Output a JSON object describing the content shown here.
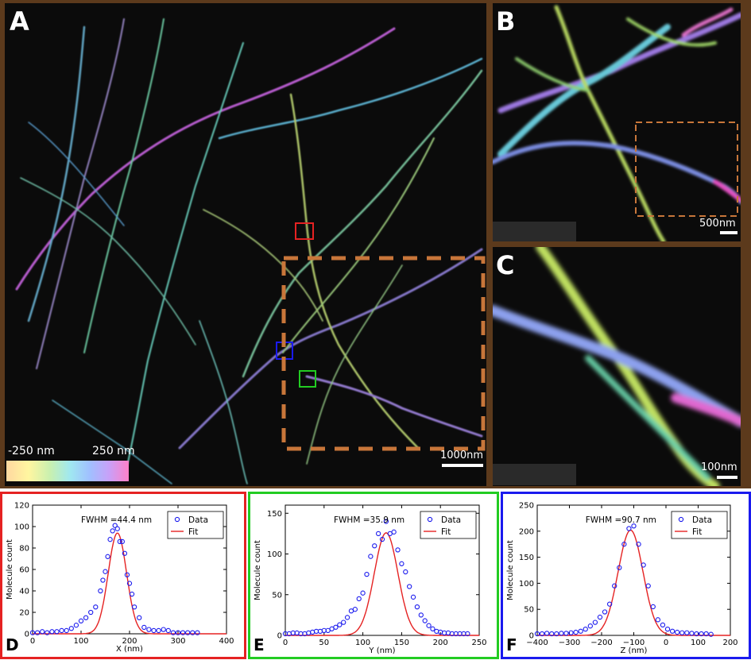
{
  "panels": {
    "a": {
      "label": "A",
      "scale_bar": "1000nm",
      "colorbar_min": "-250 nm",
      "colorbar_max": "250 nm"
    },
    "b": {
      "label": "B",
      "scale_bar": "500nm"
    },
    "c": {
      "label": "C",
      "scale_bar": "100nm"
    },
    "d": {
      "label": "D"
    },
    "e": {
      "label": "E"
    },
    "f": {
      "label": "F"
    }
  },
  "colors": {
    "frame": "#5c3a1c",
    "box_red": "#e52222",
    "box_green": "#22cc22",
    "box_blue": "#1a1aee",
    "box_orange": "#c8763a",
    "data": "#1a1aee",
    "fit": "#e52222"
  },
  "chart_data": [
    {
      "type": "scatter",
      "fwhm_label": "FWHM =44.4 nm",
      "xlabel": "X (nm)",
      "ylabel": "Molecule count",
      "xlim": [
        0,
        400
      ],
      "ylim": [
        0,
        120
      ],
      "xticks": [
        0,
        100,
        200,
        300,
        400
      ],
      "yticks": [
        0,
        20,
        40,
        60,
        80,
        100,
        120
      ],
      "legend": {
        "position": "top-right",
        "entries": [
          "Data",
          "Fit"
        ]
      },
      "series": [
        {
          "name": "Data",
          "x": [
            0,
            10,
            20,
            30,
            40,
            50,
            60,
            70,
            80,
            90,
            100,
            110,
            120,
            130,
            140,
            145,
            150,
            155,
            160,
            165,
            170,
            175,
            180,
            185,
            190,
            195,
            200,
            205,
            210,
            220,
            230,
            240,
            250,
            260,
            270,
            280,
            290,
            300,
            310,
            320,
            330,
            340
          ],
          "y": [
            1,
            1,
            2,
            1,
            2,
            2,
            3,
            3,
            5,
            8,
            12,
            15,
            20,
            25,
            40,
            50,
            58,
            72,
            88,
            96,
            101,
            98,
            86,
            86,
            75,
            55,
            47,
            37,
            25,
            15,
            6,
            4,
            3,
            3,
            4,
            3,
            1,
            1,
            1,
            1,
            1,
            1
          ]
        },
        {
          "name": "Fit",
          "fit": {
            "amplitude": 94,
            "center": 175,
            "fwhm": 44.4
          }
        }
      ]
    },
    {
      "type": "scatter",
      "fwhm_label": "FWHM =35.9 nm",
      "xlabel": "Y (nm)",
      "ylabel": "Molecule count",
      "xlim": [
        0,
        250
      ],
      "ylim": [
        0,
        160
      ],
      "xticks": [
        0,
        50,
        100,
        150,
        200,
        250
      ],
      "yticks": [
        0,
        50,
        100,
        150
      ],
      "legend": {
        "position": "top-right",
        "entries": [
          "Data",
          "Fit"
        ]
      },
      "series": [
        {
          "name": "Data",
          "x": [
            0,
            5,
            10,
            15,
            20,
            25,
            30,
            35,
            40,
            45,
            50,
            55,
            60,
            65,
            70,
            75,
            80,
            85,
            90,
            95,
            100,
            105,
            110,
            115,
            120,
            125,
            130,
            135,
            140,
            145,
            150,
            155,
            160,
            165,
            170,
            175,
            180,
            185,
            190,
            195,
            200,
            205,
            210,
            215,
            220,
            225,
            230,
            235
          ],
          "y": [
            2,
            2,
            3,
            3,
            2,
            2,
            3,
            4,
            5,
            5,
            6,
            6,
            8,
            10,
            13,
            16,
            22,
            30,
            32,
            45,
            52,
            75,
            97,
            110,
            125,
            118,
            140,
            125,
            127,
            105,
            88,
            78,
            60,
            47,
            35,
            25,
            18,
            12,
            8,
            5,
            4,
            3,
            3,
            2,
            2,
            2,
            2,
            2
          ]
        },
        {
          "name": "Fit",
          "fit": {
            "amplitude": 126,
            "center": 130,
            "fwhm": 35.9
          }
        }
      ]
    },
    {
      "type": "scatter",
      "fwhm_label": "FWHM =90.7 nm",
      "xlabel": "Z (nm)",
      "ylabel": "Molecule count",
      "xlim": [
        -400,
        200
      ],
      "ylim": [
        0,
        250
      ],
      "xticks": [
        -400,
        -300,
        -200,
        -100,
        0,
        100,
        200
      ],
      "yticks": [
        0,
        50,
        100,
        150,
        200,
        250
      ],
      "legend": {
        "position": "top-right",
        "entries": [
          "Data",
          "Fit"
        ]
      },
      "series": [
        {
          "name": "Data",
          "x": [
            -400,
            -385,
            -370,
            -355,
            -340,
            -325,
            -310,
            -295,
            -280,
            -265,
            -250,
            -235,
            -220,
            -205,
            -190,
            -175,
            -160,
            -145,
            -130,
            -115,
            -100,
            -85,
            -70,
            -55,
            -40,
            -25,
            -10,
            5,
            20,
            35,
            50,
            65,
            80,
            95,
            110,
            125,
            140
          ],
          "y": [
            3,
            3,
            4,
            3,
            3,
            4,
            4,
            5,
            6,
            8,
            12,
            18,
            25,
            35,
            45,
            60,
            95,
            130,
            175,
            205,
            210,
            175,
            135,
            95,
            55,
            30,
            20,
            12,
            8,
            6,
            5,
            5,
            4,
            3,
            3,
            3,
            2
          ]
        },
        {
          "name": "Fit",
          "fit": {
            "amplitude": 202,
            "center": -110,
            "fwhm": 90.7
          }
        }
      ]
    }
  ]
}
